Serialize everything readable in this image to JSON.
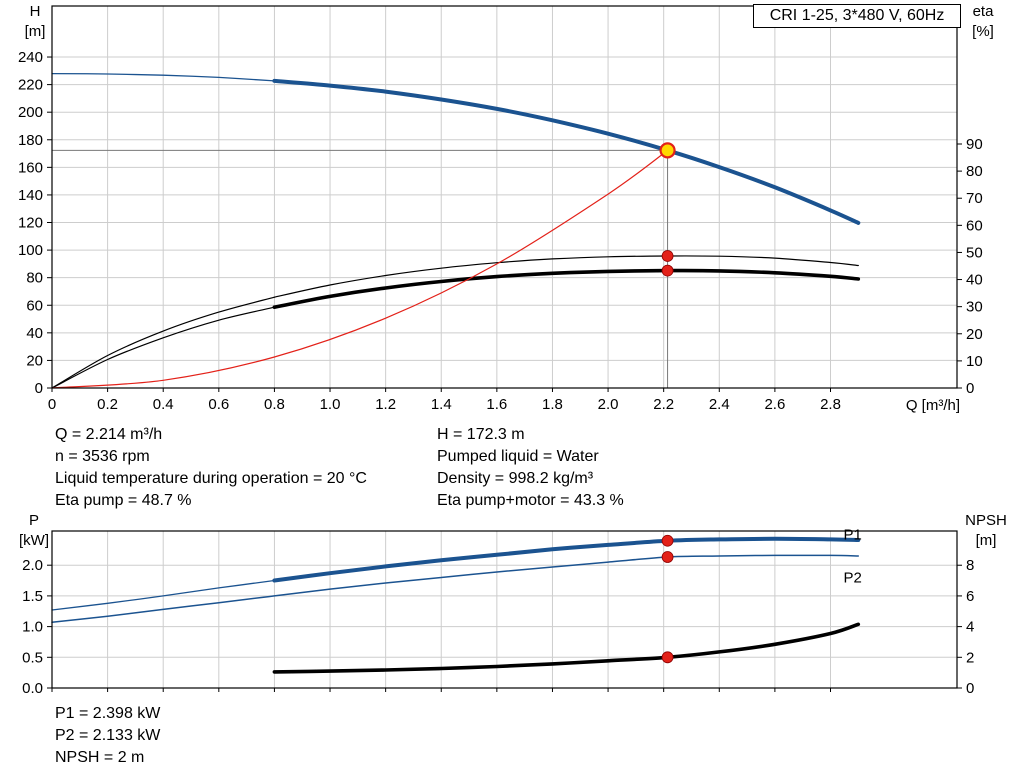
{
  "colors": {
    "blue": "#1b5390",
    "red": "#e32119",
    "dark_red": "#8e0000",
    "yellow": "#ffd800",
    "black": "#000000",
    "grid": "#cdcdcd",
    "crosshair": "#787878"
  },
  "info": {
    "q": "Q = 2.214 m³/h",
    "n": "n = 3536 rpm",
    "liquid_temp": "Liquid temperature during operation = 20 °C",
    "eta_pump": "Eta pump = 48.7 %",
    "h": "H = 172.3 m",
    "pumped_liquid": "Pumped liquid = Water",
    "density": "Density = 998.2 kg/m³",
    "eta_pump_motor": "Eta pump+motor = 43.3 %",
    "p1": "P1 = 2.398 kW",
    "p2": "P2 = 2.133 kW",
    "npsh": "NPSH = 2 m"
  },
  "chart_data": [
    {
      "type": "line",
      "title": "CRI 1-25, 3*480 V, 60Hz",
      "x_axis": {
        "label": "Q [m³/h]",
        "range": [
          0,
          3.255
        ],
        "ticks": [
          0,
          0.2,
          0.4,
          0.6,
          0.8,
          1.0,
          1.2,
          1.4,
          1.6,
          1.8,
          2.0,
          2.2,
          2.4,
          2.6,
          2.8
        ],
        "tick_labels": [
          "0",
          "0.2",
          "0.4",
          "0.6",
          "0.8",
          "1.0",
          "1.2",
          "1.4",
          "1.6",
          "1.8",
          "2.0",
          "2.2",
          "2.4",
          "2.6",
          "2.8"
        ]
      },
      "y_left": {
        "name": "H",
        "unit": "[m]",
        "range": [
          0,
          277
        ],
        "ticks": [
          0,
          20,
          40,
          60,
          80,
          100,
          120,
          140,
          160,
          180,
          200,
          220,
          240
        ],
        "tick_labels": [
          "0",
          "20",
          "40",
          "60",
          "80",
          "100",
          "120",
          "140",
          "160",
          "180",
          "200",
          "220",
          "240"
        ]
      },
      "y_right": {
        "name": "eta",
        "unit": "[%]",
        "range": [
          0,
          140.9
        ],
        "ticks": [
          0,
          10,
          20,
          30,
          40,
          50,
          60,
          70,
          80,
          90
        ],
        "tick_labels": [
          "0",
          "10",
          "20",
          "30",
          "40",
          "50",
          "60",
          "70",
          "80",
          "90"
        ]
      },
      "series": [
        {
          "name": "head-curve-lead",
          "axis": "left",
          "color": "blue",
          "width": 1.3,
          "points": [
            [
              0,
              228
            ],
            [
              0.2,
              227.7
            ],
            [
              0.4,
              226.8
            ],
            [
              0.6,
              225.2
            ],
            [
              0.8,
              222.7
            ]
          ]
        },
        {
          "name": "head-curve",
          "axis": "left",
          "color": "blue",
          "width": 4,
          "points": [
            [
              0.8,
              222.7
            ],
            [
              1.0,
              219.3
            ],
            [
              1.2,
              214.9
            ],
            [
              1.4,
              209.2
            ],
            [
              1.6,
              202.4
            ],
            [
              1.8,
              194.1
            ],
            [
              2.0,
              184.4
            ],
            [
              2.214,
              172.3
            ],
            [
              2.4,
              160.2
            ],
            [
              2.6,
              145.5
            ],
            [
              2.8,
              128.8
            ],
            [
              2.9,
              119.7
            ]
          ]
        },
        {
          "name": "eta-pump-curve-lead",
          "axis": "right",
          "color": "black",
          "width": 1.2,
          "points": [
            [
              0,
              0
            ],
            [
              0.2,
              12
            ],
            [
              0.4,
              21
            ],
            [
              0.6,
              28
            ],
            [
              0.8,
              33.5
            ]
          ]
        },
        {
          "name": "eta-pump-curve",
          "axis": "right",
          "color": "black",
          "width": 1.2,
          "points": [
            [
              0.8,
              33.5
            ],
            [
              1.0,
              38
            ],
            [
              1.2,
              41.5
            ],
            [
              1.4,
              44.2
            ],
            [
              1.6,
              46.2
            ],
            [
              1.8,
              47.6
            ],
            [
              2.0,
              48.4
            ],
            [
              2.214,
              48.7
            ],
            [
              2.4,
              48.6
            ],
            [
              2.6,
              47.9
            ],
            [
              2.8,
              46.3
            ],
            [
              2.9,
              45.2
            ]
          ]
        },
        {
          "name": "eta-pump-motor-curve-lead",
          "axis": "right",
          "color": "black",
          "width": 1.2,
          "points": [
            [
              0,
              0
            ],
            [
              0.2,
              10.5
            ],
            [
              0.4,
              18.5
            ],
            [
              0.6,
              25
            ],
            [
              0.8,
              29.8
            ]
          ]
        },
        {
          "name": "eta-pump-motor-curve",
          "axis": "right",
          "color": "black",
          "width": 3.6,
          "points": [
            [
              0.8,
              29.8
            ],
            [
              1.0,
              33.8
            ],
            [
              1.2,
              36.9
            ],
            [
              1.4,
              39.3
            ],
            [
              1.6,
              41.1
            ],
            [
              1.8,
              42.3
            ],
            [
              2.0,
              43.0
            ],
            [
              2.214,
              43.3
            ],
            [
              2.4,
              43.2
            ],
            [
              2.6,
              42.5
            ],
            [
              2.8,
              41.2
            ],
            [
              2.9,
              40.2
            ]
          ]
        },
        {
          "name": "system-curve",
          "axis": "left",
          "color": "red",
          "width": 1.2,
          "points": [
            [
              0,
              0
            ],
            [
              0.4,
              5.6
            ],
            [
              0.8,
              22.5
            ],
            [
              1.2,
              50.6
            ],
            [
              1.6,
              90
            ],
            [
              2.0,
              140.6
            ],
            [
              2.214,
              172.3
            ]
          ]
        }
      ],
      "crosshair": {
        "q": 2.214,
        "value": 172.3,
        "axis": "left"
      },
      "markers": [
        {
          "style": "duty",
          "axis": "left",
          "q": 2.214,
          "value": 172.3,
          "name": "duty-point"
        },
        {
          "style": "dot",
          "axis": "right",
          "q": 2.214,
          "value": 48.7,
          "name": "eta-pump-point"
        },
        {
          "style": "dot",
          "axis": "right",
          "q": 2.214,
          "value": 43.3,
          "name": "eta-pump-motor-point"
        }
      ],
      "labels": []
    },
    {
      "type": "line",
      "title": "",
      "x_axis": {
        "label": "",
        "range": [
          0,
          3.255
        ],
        "ticks": [
          0,
          0.2,
          0.4,
          0.6,
          0.8,
          1.0,
          1.2,
          1.4,
          1.6,
          1.8,
          2.0,
          2.2,
          2.4,
          2.6,
          2.8
        ],
        "tick_labels": []
      },
      "y_left": {
        "name": "P",
        "unit": "[kW]",
        "range": [
          0,
          2.557
        ],
        "ticks": [
          0,
          0.5,
          1.0,
          1.5,
          2.0
        ],
        "tick_labels": [
          "0.0",
          "0.5",
          "1.0",
          "1.5",
          "2.0"
        ]
      },
      "y_right": {
        "name": "NPSH",
        "unit": "[m]",
        "range": [
          0,
          10.23
        ],
        "ticks": [
          0,
          2,
          4,
          6,
          8
        ],
        "tick_labels": [
          "0",
          "2",
          "4",
          "6",
          "8"
        ]
      },
      "series": [
        {
          "name": "p1-curve-lead",
          "axis": "left",
          "color": "blue",
          "width": 1.3,
          "points": [
            [
              0,
              1.27
            ],
            [
              0.2,
              1.38
            ],
            [
              0.4,
              1.5
            ],
            [
              0.6,
              1.63
            ],
            [
              0.8,
              1.75
            ]
          ]
        },
        {
          "name": "p1-curve",
          "axis": "left",
          "color": "blue",
          "width": 4,
          "points": [
            [
              0.8,
              1.75
            ],
            [
              1.0,
              1.87
            ],
            [
              1.2,
              1.98
            ],
            [
              1.4,
              2.08
            ],
            [
              1.6,
              2.17
            ],
            [
              1.8,
              2.26
            ],
            [
              2.0,
              2.33
            ],
            [
              2.214,
              2.398
            ],
            [
              2.4,
              2.42
            ],
            [
              2.6,
              2.43
            ],
            [
              2.8,
              2.42
            ],
            [
              2.9,
              2.41
            ]
          ]
        },
        {
          "name": "p2-curve",
          "axis": "left",
          "color": "blue",
          "width": 1.5,
          "points": [
            [
              0,
              1.07
            ],
            [
              0.2,
              1.17
            ],
            [
              0.4,
              1.28
            ],
            [
              0.6,
              1.39
            ],
            [
              0.8,
              1.5
            ],
            [
              1.0,
              1.61
            ],
            [
              1.2,
              1.71
            ],
            [
              1.4,
              1.8
            ],
            [
              1.6,
              1.89
            ],
            [
              1.8,
              1.97
            ],
            [
              2.0,
              2.05
            ],
            [
              2.214,
              2.133
            ],
            [
              2.4,
              2.15
            ],
            [
              2.6,
              2.16
            ],
            [
              2.8,
              2.16
            ],
            [
              2.9,
              2.15
            ]
          ]
        },
        {
          "name": "npsh-curve",
          "axis": "right",
          "color": "black",
          "width": 3.6,
          "points": [
            [
              0.8,
              1.05
            ],
            [
              1.0,
              1.1
            ],
            [
              1.2,
              1.17
            ],
            [
              1.4,
              1.27
            ],
            [
              1.6,
              1.4
            ],
            [
              1.8,
              1.57
            ],
            [
              2.0,
              1.77
            ],
            [
              2.214,
              2.0
            ],
            [
              2.4,
              2.35
            ],
            [
              2.6,
              2.85
            ],
            [
              2.8,
              3.55
            ],
            [
              2.9,
              4.15
            ]
          ]
        }
      ],
      "markers": [
        {
          "style": "dot",
          "axis": "left",
          "q": 2.214,
          "value": 2.398,
          "name": "p1-point"
        },
        {
          "style": "dot",
          "axis": "left",
          "q": 2.214,
          "value": 2.133,
          "name": "p2-point"
        },
        {
          "style": "dot",
          "axis": "right",
          "q": 2.214,
          "value": 2.0,
          "name": "npsh-point"
        }
      ],
      "labels": [
        {
          "text": "P1",
          "q": 2.88,
          "value": 2.5,
          "axis": "left",
          "color": "blue"
        },
        {
          "text": "P2",
          "q": 2.88,
          "value": 1.8,
          "axis": "left",
          "color": "blue"
        }
      ]
    }
  ]
}
